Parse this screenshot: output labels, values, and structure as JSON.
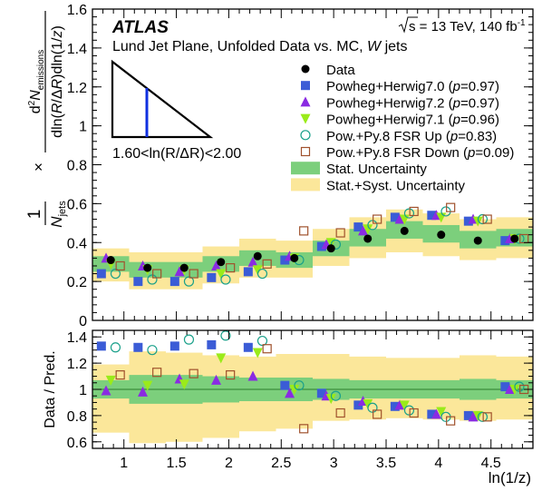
{
  "chart_data": [
    {
      "panel": "main",
      "type": "scatter",
      "experiment": "ATLAS",
      "energy_prefix": "s",
      "energy_text": " = 13 TeV, 140 fb",
      "energy_sup": "-1",
      "subtitle_prefix": "Lund Jet Plane, Unfolded Data vs. MC, ",
      "subtitle_italic": "W",
      "subtitle_suffix": " jets",
      "inset_label": "1.60<ln(R/ΔR)<2.00",
      "ylabel_num": "d²N_emissions",
      "ylabel_den": "dln(R/ΔR)dln(1/z)",
      "ylabel_pre": "1 / N_jets ×",
      "xlim": [
        0.7,
        4.9
      ],
      "ylim": [
        0,
        1.6
      ],
      "xticks": [
        1,
        1.5,
        2,
        2.5,
        3,
        3.5,
        4,
        4.5
      ],
      "yticks": [
        0,
        0.2,
        0.4,
        0.6,
        0.8,
        1,
        1.2,
        1.4,
        1.6
      ],
      "bin_edges": [
        0.7,
        1.05,
        1.4,
        1.75,
        2.1,
        2.45,
        2.8,
        3.15,
        3.5,
        3.85,
        4.2,
        4.55,
        4.9
      ],
      "bin_centers": [
        0.875,
        1.225,
        1.575,
        1.925,
        2.275,
        2.625,
        2.975,
        3.325,
        3.675,
        4.025,
        4.375,
        4.725
      ],
      "data": [
        0.31,
        0.27,
        0.27,
        0.3,
        0.33,
        0.32,
        0.37,
        0.42,
        0.46,
        0.44,
        0.41,
        0.42
      ],
      "stat_band": [
        [
          0.25,
          0.33
        ],
        [
          0.22,
          0.3
        ],
        [
          0.22,
          0.3
        ],
        [
          0.25,
          0.33
        ],
        [
          0.28,
          0.36
        ],
        [
          0.27,
          0.35
        ],
        [
          0.33,
          0.41
        ],
        [
          0.38,
          0.47
        ],
        [
          0.42,
          0.51
        ],
        [
          0.4,
          0.49
        ],
        [
          0.37,
          0.46
        ],
        [
          0.38,
          0.47
        ]
      ],
      "syst_band": [
        [
          0.2,
          0.37
        ],
        [
          0.16,
          0.35
        ],
        [
          0.16,
          0.35
        ],
        [
          0.19,
          0.38
        ],
        [
          0.22,
          0.42
        ],
        [
          0.22,
          0.41
        ],
        [
          0.28,
          0.47
        ],
        [
          0.32,
          0.53
        ],
        [
          0.35,
          0.57
        ],
        [
          0.33,
          0.55
        ],
        [
          0.31,
          0.52
        ],
        [
          0.32,
          0.53
        ]
      ],
      "series": [
        {
          "name": "Powheg+Herwig7.0",
          "p": "0.97",
          "marker": "square",
          "color": "#3b5cd6",
          "values": [
            0.24,
            0.2,
            0.2,
            0.22,
            0.25,
            0.31,
            0.38,
            0.48,
            0.53,
            0.54,
            0.51,
            0.41
          ],
          "offset": -0.09
        },
        {
          "name": "Powheg+Herwig7.2",
          "p": "0.97",
          "marker": "triangle-up",
          "color": "#8a2be2",
          "values": [
            0.32,
            0.28,
            0.25,
            0.28,
            0.3,
            0.33,
            0.39,
            0.46,
            0.52,
            0.54,
            0.52,
            0.42
          ],
          "offset": -0.045
        },
        {
          "name": "Powheg+Herwig7.1",
          "p": "0.96",
          "marker": "triangle-down",
          "color": "#9aeb1a",
          "values": [
            0.29,
            0.26,
            0.26,
            0.24,
            0.26,
            0.32,
            0.4,
            0.47,
            0.52,
            0.53,
            0.51,
            0.42
          ],
          "offset": 0.0
        },
        {
          "name": "Pow.+Py.8 FSR Up",
          "p": "0.83",
          "marker": "circle-open",
          "color": "#1aa08a",
          "values": [
            0.24,
            0.21,
            0.2,
            0.21,
            0.24,
            0.31,
            0.39,
            0.49,
            0.55,
            0.56,
            0.52,
            0.42
          ],
          "offset": 0.045
        },
        {
          "name": "Pow.+Py.8 FSR Down",
          "p": "0.09",
          "marker": "square-open",
          "color": "#a0522d",
          "values": [
            0.28,
            0.24,
            0.24,
            0.27,
            0.29,
            0.46,
            0.45,
            0.52,
            0.56,
            0.58,
            0.52,
            0.42
          ],
          "offset": 0.09
        }
      ],
      "legend": {
        "data_label": "Data",
        "stat_label": "Stat. Uncertainty",
        "syst_label": "Stat.+Syst. Uncertainty",
        "placement": "top-right"
      },
      "colors": {
        "stat": "#7ccf7c",
        "syst": "#fbe79a",
        "data": "#000000",
        "inset_line": "#1030e0"
      }
    },
    {
      "panel": "ratio",
      "type": "scatter",
      "ylabel": "Data / Pred.",
      "xlabel": "ln(1/z)",
      "xlim": [
        0.7,
        4.9
      ],
      "ylim": [
        0.55,
        1.45
      ],
      "yticks": [
        0.6,
        0.8,
        1,
        1.2,
        1.4
      ],
      "stat_band": [
        [
          0.93,
          1.07
        ],
        [
          0.89,
          1.11
        ],
        [
          0.89,
          1.11
        ],
        [
          0.9,
          1.1
        ],
        [
          0.91,
          1.09
        ],
        [
          0.91,
          1.09
        ],
        [
          0.92,
          1.08
        ],
        [
          0.93,
          1.07
        ],
        [
          0.93,
          1.07
        ],
        [
          0.93,
          1.07
        ],
        [
          0.92,
          1.08
        ],
        [
          0.93,
          1.07
        ]
      ],
      "syst_band": [
        [
          0.67,
          1.19
        ],
        [
          0.59,
          1.29
        ],
        [
          0.6,
          1.28
        ],
        [
          0.63,
          1.26
        ],
        [
          0.68,
          1.25
        ],
        [
          0.7,
          1.27
        ],
        [
          0.76,
          1.27
        ],
        [
          0.77,
          1.25
        ],
        [
          0.78,
          1.24
        ],
        [
          0.77,
          1.24
        ],
        [
          0.76,
          1.26
        ],
        [
          0.77,
          1.25
        ]
      ],
      "series": [
        {
          "name": "Powheg+Herwig7.0",
          "values": [
            1.33,
            1.32,
            1.33,
            1.34,
            1.32,
            1.03,
            0.97,
            0.88,
            0.87,
            0.81,
            0.8,
            1.02
          ]
        },
        {
          "name": "Powheg+Herwig7.2",
          "values": [
            0.99,
            0.98,
            1.08,
            1.07,
            1.1,
            0.97,
            0.95,
            0.91,
            0.88,
            0.81,
            0.79,
            1.0
          ]
        },
        {
          "name": "Powheg+Herwig7.1",
          "values": [
            1.07,
            1.03,
            1.04,
            1.24,
            1.28,
            1.0,
            0.93,
            0.89,
            0.88,
            0.83,
            0.8,
            1.0
          ]
        },
        {
          "name": "Pow.+Py.8 FSR Up",
          "values": [
            1.32,
            1.3,
            1.38,
            1.41,
            1.37,
            1.03,
            0.95,
            0.86,
            0.84,
            0.79,
            0.79,
            1.02
          ]
        },
        {
          "name": "Pow.+Py.8 FSR Down",
          "values": [
            1.11,
            1.13,
            1.12,
            1.11,
            1.31,
            0.7,
            0.82,
            0.81,
            0.82,
            0.76,
            0.79,
            1.0
          ]
        }
      ]
    }
  ]
}
